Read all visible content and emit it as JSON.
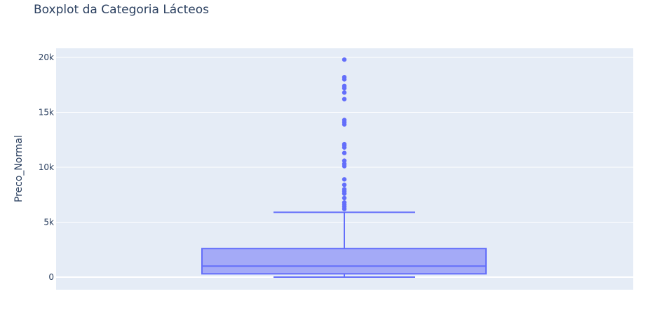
{
  "chart_data": {
    "type": "box",
    "title": "Boxplot da Categoria Lácteos",
    "xlabel": "",
    "ylabel": "Preco_Normal",
    "ylim": [
      -1100,
      21200
    ],
    "yticks": [
      0,
      5000,
      10000,
      15000,
      20000
    ],
    "ytick_labels": [
      "0",
      "5k",
      "10k",
      "15k",
      "20k"
    ],
    "grid": true,
    "box": {
      "min": 0,
      "q1": 300,
      "median": 1000,
      "q3": 2600,
      "upper_fence": 5900,
      "outliers": [
        6200,
        6400,
        6600,
        6800,
        7200,
        7600,
        7800,
        8000,
        8400,
        8900,
        10100,
        10300,
        10600,
        11300,
        11800,
        12000,
        12100,
        13900,
        14100,
        14300,
        16200,
        16800,
        17200,
        17400,
        18000,
        18200,
        19800
      ]
    },
    "colors": {
      "box_line": "#636efa",
      "box_fill": "#a4aaf7",
      "plot_bg": "#e5ecf6",
      "grid": "#ffffff",
      "text": "#2a3f5f"
    }
  }
}
